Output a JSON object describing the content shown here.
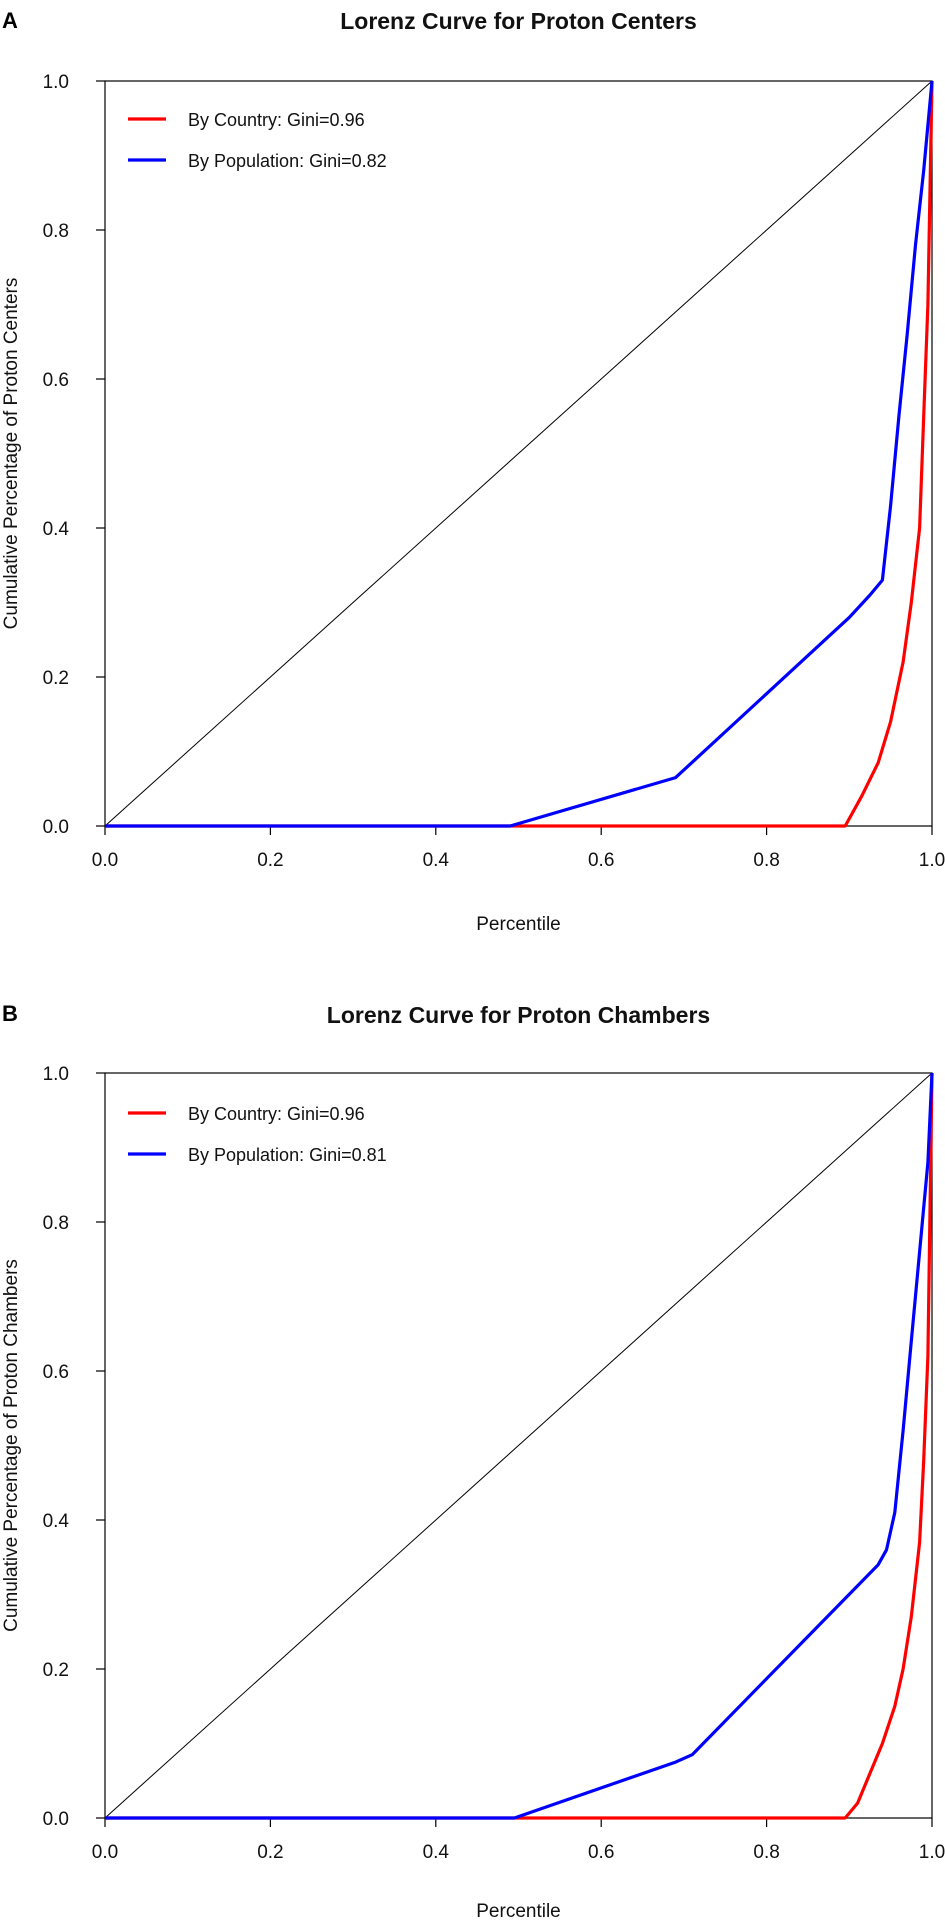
{
  "chart_data": [
    {
      "panel": "A",
      "type": "line",
      "title": "Lorenz Curve for Proton Centers",
      "xlabel": "Percentile",
      "ylabel": "Cumulative Percentage of Proton Centers",
      "xlim": [
        0,
        1
      ],
      "ylim": [
        0,
        1
      ],
      "x_ticks": [
        "0.0",
        "0.2",
        "0.4",
        "0.6",
        "0.8",
        "1.0"
      ],
      "y_ticks": [
        "0.0",
        "0.2",
        "0.4",
        "0.6",
        "0.8",
        "1.0"
      ],
      "grid": false,
      "legend_position": "top-left",
      "equality_line": {
        "x": [
          0,
          1
        ],
        "y": [
          0,
          1
        ],
        "color": "#000000"
      },
      "series": [
        {
          "name": "By Country: Gini=0.96",
          "color": "#ff0000",
          "x": [
            0,
            0.895,
            0.915,
            0.935,
            0.95,
            0.965,
            0.975,
            0.985,
            0.99,
            0.995,
            1.0
          ],
          "y": [
            0,
            0,
            0.04,
            0.085,
            0.14,
            0.22,
            0.3,
            0.4,
            0.55,
            0.7,
            1.0
          ]
        },
        {
          "name": "By Population: Gini=0.82",
          "color": "#0000ff",
          "x": [
            0,
            0.49,
            0.69,
            0.9,
            0.925,
            0.94,
            0.95,
            0.96,
            0.97,
            0.98,
            0.99,
            1.0
          ],
          "y": [
            0,
            0,
            0.065,
            0.28,
            0.31,
            0.33,
            0.43,
            0.55,
            0.66,
            0.78,
            0.88,
            1.0
          ]
        }
      ]
    },
    {
      "panel": "B",
      "type": "line",
      "title": "Lorenz Curve for Proton Chambers",
      "xlabel": "Percentile",
      "ylabel": "Cumulative Percentage of Proton Chambers",
      "xlim": [
        0,
        1
      ],
      "ylim": [
        0,
        1
      ],
      "x_ticks": [
        "0.0",
        "0.2",
        "0.4",
        "0.6",
        "0.8",
        "1.0"
      ],
      "y_ticks": [
        "0.0",
        "0.2",
        "0.4",
        "0.6",
        "0.8",
        "1.0"
      ],
      "grid": false,
      "legend_position": "top-left",
      "equality_line": {
        "x": [
          0,
          1
        ],
        "y": [
          0,
          1
        ],
        "color": "#000000"
      },
      "series": [
        {
          "name": "By Country: Gini=0.96",
          "color": "#ff0000",
          "x": [
            0,
            0.895,
            0.91,
            0.925,
            0.94,
            0.955,
            0.965,
            0.975,
            0.985,
            0.99,
            0.995,
            1.0
          ],
          "y": [
            0,
            0,
            0.02,
            0.06,
            0.1,
            0.15,
            0.2,
            0.27,
            0.37,
            0.48,
            0.62,
            1.0
          ]
        },
        {
          "name": "By Population: Gini=0.81",
          "color": "#0000ff",
          "x": [
            0,
            0.495,
            0.69,
            0.71,
            0.935,
            0.945,
            0.955,
            0.965,
            0.975,
            0.985,
            0.995,
            1.0
          ],
          "y": [
            0,
            0,
            0.075,
            0.085,
            0.34,
            0.36,
            0.41,
            0.52,
            0.64,
            0.76,
            0.88,
            1.0
          ]
        }
      ]
    }
  ]
}
